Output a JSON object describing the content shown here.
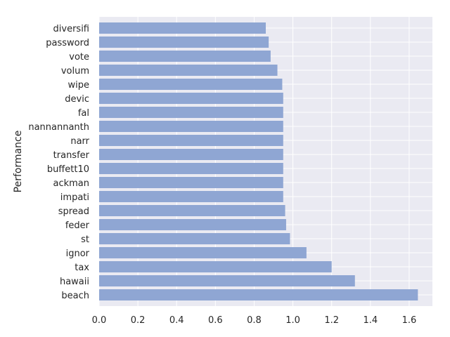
{
  "chart_data": {
    "type": "bar",
    "orientation": "horizontal",
    "categories": [
      "beach",
      "hawaii",
      "tax",
      "ignor",
      "st",
      "feder",
      "spread",
      "impati",
      "ackman",
      "buffett10",
      "transfer",
      "narr",
      "nannannanth",
      "fal",
      "devic",
      "wipe",
      "volum",
      "vote",
      "password",
      "diversifi"
    ],
    "values": [
      1.645,
      1.32,
      1.2,
      1.07,
      0.985,
      0.965,
      0.96,
      0.95,
      0.95,
      0.95,
      0.95,
      0.95,
      0.95,
      0.95,
      0.95,
      0.945,
      0.92,
      0.885,
      0.875,
      0.86
    ],
    "title": "",
    "xlabel": "",
    "ylabel": "Performance",
    "xlim": [
      0,
      1.72
    ],
    "xticks": [
      "0.0",
      "0.2",
      "0.4",
      "0.6",
      "0.8",
      "1.0",
      "1.2",
      "1.4",
      "1.6"
    ],
    "grid": true,
    "colors": {
      "bar": "#8fa6d3",
      "plot_background": "#eaeaf2",
      "grid": "#ffffff",
      "text": "#262626"
    }
  }
}
